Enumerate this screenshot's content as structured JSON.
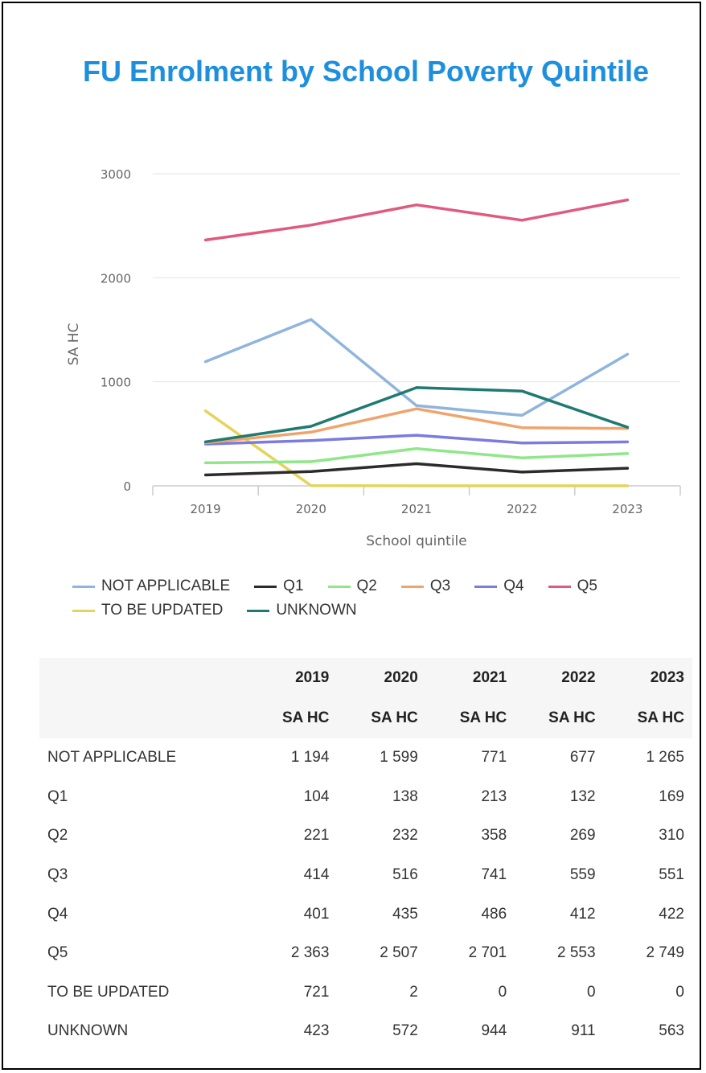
{
  "title": "FU Enrolment by School Poverty Quintile",
  "chart_data": {
    "type": "line",
    "title": "FU Enrolment by School Poverty Quintile",
    "xlabel": "School quintile",
    "ylabel": "SA HC",
    "x": [
      "2019",
      "2020",
      "2021",
      "2022",
      "2023"
    ],
    "ylim": [
      0,
      3000
    ],
    "yticks": [
      "0",
      "1000",
      "2000",
      "3000"
    ],
    "grid": true,
    "legend_position": "bottom",
    "series": [
      {
        "name": "NOT APPLICABLE",
        "color": "#8fb4dd",
        "values": [
          1194,
          1599,
          771,
          677,
          1265
        ]
      },
      {
        "name": "Q1",
        "color": "#2b2b2b",
        "values": [
          104,
          138,
          213,
          132,
          169
        ]
      },
      {
        "name": "Q2",
        "color": "#90e68a",
        "values": [
          221,
          232,
          358,
          269,
          310
        ]
      },
      {
        "name": "Q3",
        "color": "#f0a46d",
        "values": [
          414,
          516,
          741,
          559,
          551
        ]
      },
      {
        "name": "Q4",
        "color": "#7b7be0",
        "values": [
          401,
          435,
          486,
          412,
          422
        ]
      },
      {
        "name": "Q5",
        "color": "#e05a7e",
        "values": [
          2363,
          2507,
          2701,
          2553,
          2749
        ]
      },
      {
        "name": "TO BE UPDATED",
        "color": "#e4d45c",
        "values": [
          721,
          2,
          0,
          0,
          0
        ]
      },
      {
        "name": "UNKNOWN",
        "color": "#1f7a72",
        "values": [
          423,
          572,
          944,
          911,
          563
        ]
      }
    ]
  },
  "table": {
    "years": [
      "2019",
      "2020",
      "2021",
      "2022",
      "2023"
    ],
    "unit": "SA HC",
    "rows": [
      {
        "label": "NOT APPLICABLE",
        "values": [
          "1 194",
          "1 599",
          "771",
          "677",
          "1 265"
        ]
      },
      {
        "label": "Q1",
        "values": [
          "104",
          "138",
          "213",
          "132",
          "169"
        ]
      },
      {
        "label": "Q2",
        "values": [
          "221",
          "232",
          "358",
          "269",
          "310"
        ]
      },
      {
        "label": "Q3",
        "values": [
          "414",
          "516",
          "741",
          "559",
          "551"
        ]
      },
      {
        "label": "Q4",
        "values": [
          "401",
          "435",
          "486",
          "412",
          "422"
        ]
      },
      {
        "label": "Q5",
        "values": [
          "2 363",
          "2 507",
          "2 701",
          "2 553",
          "2 749"
        ]
      },
      {
        "label": "TO BE UPDATED",
        "values": [
          "721",
          "2",
          "0",
          "0",
          "0"
        ]
      },
      {
        "label": "UNKNOWN",
        "values": [
          "423",
          "572",
          "944",
          "911",
          "563"
        ]
      }
    ]
  }
}
